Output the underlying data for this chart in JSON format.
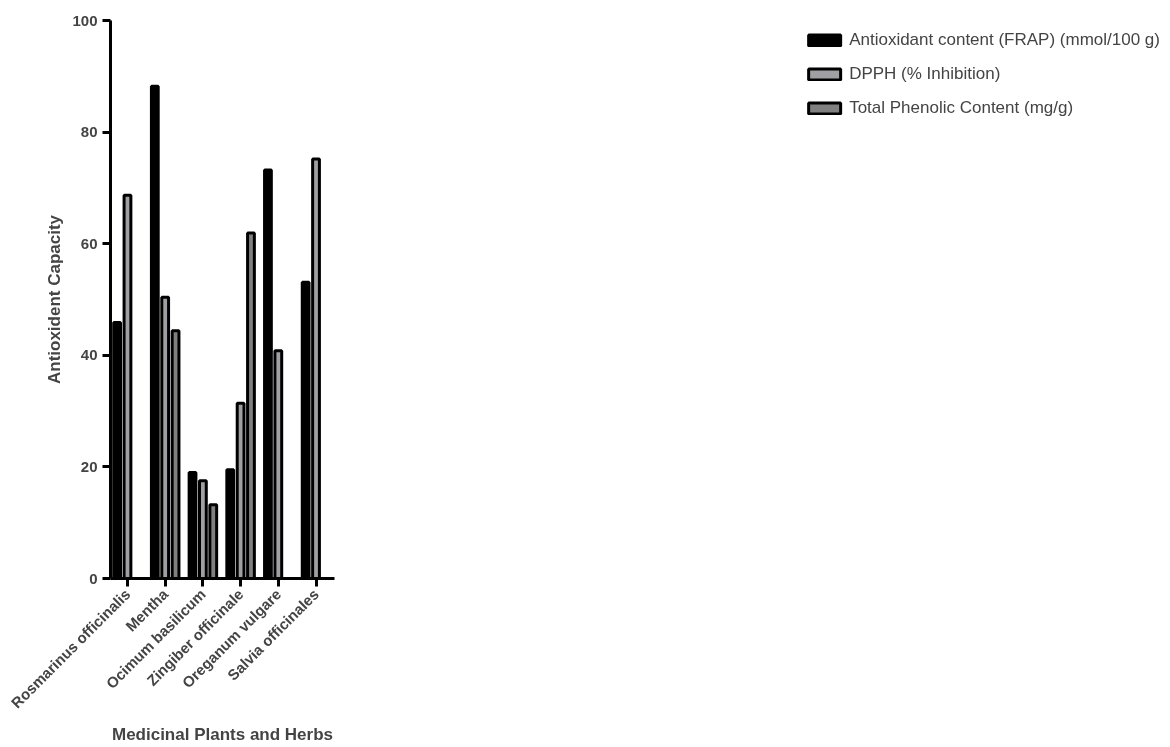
{
  "chart_data": {
    "type": "bar",
    "xlabel": "Medicinal Plants and Herbs",
    "ylabel": "Antioxident Capacity",
    "categories": [
      "Rosmarinus officinalis",
      "Mentha",
      "Ocimum basilicum",
      "Zingiber officinale",
      "Oreganum vulgare",
      "Salvia officinales"
    ],
    "series": [
      {
        "name": "Antioxidant content (FRAP) (mmol/100 g)",
        "color": "#000000",
        "values": [
          45.9,
          88.2,
          19.0,
          19.5,
          73.2,
          53.1
        ]
      },
      {
        "name": "DPPH (% Inhibition)",
        "color": "#a0a0a4",
        "values": [
          68.7,
          50.4,
          17.5,
          31.4,
          40.8,
          75.2
        ]
      },
      {
        "name": "Total Phenolic Content (mg/g)",
        "color": "#808080",
        "values": [
          null,
          44.4,
          13.2,
          61.9,
          null,
          null
        ]
      }
    ],
    "ylim": [
      0,
      100
    ],
    "yticks": [
      0,
      20,
      40,
      60,
      80,
      100
    ],
    "grid": false,
    "legend": "right"
  }
}
